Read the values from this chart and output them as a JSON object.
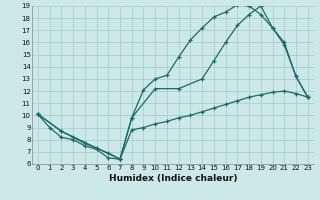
{
  "xlabel": "Humidex (Indice chaleur)",
  "xlim": [
    -0.5,
    23.5
  ],
  "ylim": [
    6,
    19
  ],
  "xticks": [
    0,
    1,
    2,
    3,
    4,
    5,
    6,
    7,
    8,
    9,
    10,
    11,
    12,
    13,
    14,
    15,
    16,
    17,
    18,
    19,
    20,
    21,
    22,
    23
  ],
  "yticks": [
    6,
    7,
    8,
    9,
    10,
    11,
    12,
    13,
    14,
    15,
    16,
    17,
    18,
    19
  ],
  "bg_color": "#cce8e8",
  "line_color": "#1a6b6b",
  "grid_color": "#aad0d0",
  "line1_x": [
    0,
    1,
    2,
    3,
    4,
    5,
    6,
    7,
    8,
    9,
    10,
    11,
    12,
    13,
    14,
    15,
    16,
    17,
    18,
    19,
    20,
    21,
    22,
    23
  ],
  "line1_y": [
    10.1,
    9.0,
    8.2,
    8.0,
    7.5,
    7.2,
    6.5,
    6.4,
    9.8,
    12.1,
    13.0,
    13.3,
    14.8,
    16.2,
    17.2,
    18.1,
    18.5,
    19.1,
    19.0,
    18.3,
    17.2,
    16.0,
    13.2,
    11.5
  ],
  "line2_x": [
    0,
    2,
    3,
    4,
    5,
    6,
    7,
    8,
    10,
    12,
    14,
    15,
    16,
    17,
    18,
    19,
    20,
    21,
    22,
    23
  ],
  "line2_y": [
    10.1,
    8.7,
    8.2,
    7.7,
    7.3,
    6.9,
    6.4,
    9.8,
    12.2,
    12.2,
    13.0,
    14.5,
    16.0,
    17.4,
    18.3,
    19.0,
    17.2,
    15.8,
    13.2,
    11.5
  ],
  "line3_x": [
    0,
    2,
    7,
    8,
    9,
    10,
    11,
    12,
    13,
    14,
    15,
    16,
    17,
    18,
    19,
    20,
    21,
    22,
    23
  ],
  "line3_y": [
    10.1,
    8.7,
    6.4,
    8.8,
    9.0,
    9.3,
    9.5,
    9.8,
    10.0,
    10.3,
    10.6,
    10.9,
    11.2,
    11.5,
    11.7,
    11.9,
    12.0,
    11.8,
    11.5
  ]
}
